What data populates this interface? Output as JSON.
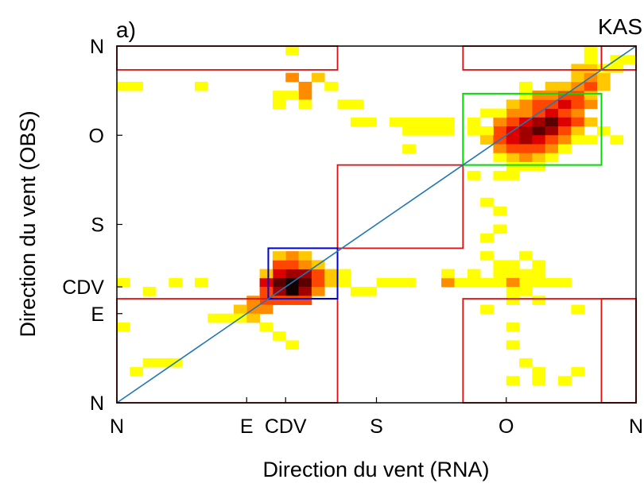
{
  "chart_data": {
    "type": "heatmap",
    "panel_label": "a)",
    "station": "KAS",
    "xlabel": "Direction du vent (RNA)",
    "ylabel": "Direction du vent (OBS)",
    "axis_range_deg": [
      0,
      360
    ],
    "x_ticks": [
      {
        "label": "N",
        "value": 0
      },
      {
        "label": "E",
        "value": 90
      },
      {
        "label": "CDV",
        "value": 117
      },
      {
        "label": "S",
        "value": 180
      },
      {
        "label": "O",
        "value": 270
      },
      {
        "label": "N",
        "value": 360
      }
    ],
    "y_ticks": [
      {
        "label": "N",
        "value": 0
      },
      {
        "label": "E",
        "value": 90
      },
      {
        "label": "CDV",
        "value": 117
      },
      {
        "label": "S",
        "value": 180
      },
      {
        "label": "O",
        "value": 270
      },
      {
        "label": "N",
        "value": 360
      }
    ],
    "bin_deg": 9,
    "colormap": [
      "#ffff00",
      "#ffc800",
      "#ff8c00",
      "#ff4600",
      "#dc0000",
      "#a00000",
      "#5a0000",
      "#140000"
    ],
    "colors": {
      "diagonal": "#1f77b4",
      "red_regions": "#e01010",
      "blue_box": "#0000cc",
      "green_box": "#00dd00"
    },
    "cells": [
      [
        117,
        117,
        1.0
      ],
      [
        117,
        108,
        0.9
      ],
      [
        108,
        117,
        0.85
      ],
      [
        126,
        117,
        0.8
      ],
      [
        117,
        126,
        0.75
      ],
      [
        108,
        108,
        0.7
      ],
      [
        126,
        108,
        0.65
      ],
      [
        126,
        126,
        0.65
      ],
      [
        108,
        126,
        0.6
      ],
      [
        99,
        117,
        0.55
      ],
      [
        117,
        99,
        0.5
      ],
      [
        99,
        108,
        0.5
      ],
      [
        135,
        117,
        0.5
      ],
      [
        117,
        135,
        0.5
      ],
      [
        108,
        99,
        0.45
      ],
      [
        99,
        99,
        0.45
      ],
      [
        135,
        126,
        0.45
      ],
      [
        126,
        99,
        0.4
      ],
      [
        108,
        135,
        0.4
      ],
      [
        126,
        135,
        0.35
      ],
      [
        90,
        99,
        0.35
      ],
      [
        99,
        90,
        0.35
      ],
      [
        90,
        90,
        0.3
      ],
      [
        81,
        90,
        0.25
      ],
      [
        117,
        144,
        0.3
      ],
      [
        135,
        108,
        0.3
      ],
      [
        108,
        144,
        0.2
      ],
      [
        126,
        144,
        0.25
      ],
      [
        99,
        126,
        0.15
      ],
      [
        144,
        126,
        0.15
      ],
      [
        144,
        117,
        0.15
      ],
      [
        135,
        135,
        0.2
      ],
      [
        72,
        81,
        0.1
      ],
      [
        81,
        81,
        0.1
      ],
      [
        63,
        81,
        0.05
      ],
      [
        108,
        63,
        0.05
      ],
      [
        117,
        54,
        0.05
      ],
      [
        99,
        72,
        0.1
      ],
      [
        90,
        81,
        0.15
      ],
      [
        9,
        27,
        0.05
      ],
      [
        36,
        117,
        0.05
      ],
      [
        0,
        72,
        0.05
      ],
      [
        18,
        108,
        0.05
      ],
      [
        54,
        117,
        0.05
      ],
      [
        18,
        36,
        0.05
      ],
      [
        27,
        36,
        0.05
      ],
      [
        36,
        36,
        0.05
      ],
      [
        0,
        117,
        0.05
      ],
      [
        153,
        117,
        0.05
      ],
      [
        162,
        108,
        0.05
      ],
      [
        171,
        108,
        0.05
      ],
      [
        153,
        126,
        0.05
      ],
      [
        180,
        117,
        0.05
      ],
      [
        189,
        117,
        0.05
      ],
      [
        198,
        117,
        0.05
      ],
      [
        225,
        117,
        0.3
      ],
      [
        225,
        126,
        0.05
      ],
      [
        234,
        117,
        0.05
      ],
      [
        243,
        117,
        0.05
      ],
      [
        243,
        126,
        0.05
      ],
      [
        252,
        117,
        0.05
      ],
      [
        261,
        117,
        0.05
      ],
      [
        270,
        126,
        0.05
      ],
      [
        279,
        117,
        0.05
      ],
      [
        288,
        117,
        0.05
      ],
      [
        297,
        117,
        0.05
      ],
      [
        306,
        117,
        0.05
      ],
      [
        261,
        126,
        0.1
      ],
      [
        270,
        117,
        0.3
      ],
      [
        279,
        126,
        0.1
      ],
      [
        279,
        108,
        0.05
      ],
      [
        288,
        126,
        0.05
      ],
      [
        288,
        135,
        0.05
      ],
      [
        270,
        135,
        0.05
      ],
      [
        270,
        108,
        0.05
      ],
      [
        270,
        99,
        0.05
      ],
      [
        270,
        72,
        0.05
      ],
      [
        252,
        144,
        0.05
      ],
      [
        279,
        144,
        0.05
      ],
      [
        261,
        135,
        0.05
      ],
      [
        261,
        171,
        0.05
      ],
      [
        252,
        162,
        0.05
      ],
      [
        252,
        90,
        0.05
      ],
      [
        288,
        99,
        0.05
      ],
      [
        270,
        54,
        0.05
      ],
      [
        288,
        27,
        0.05
      ],
      [
        288,
        18,
        0.05
      ],
      [
        306,
        18,
        0.05
      ],
      [
        270,
        18,
        0.05
      ],
      [
        315,
        27,
        0.05
      ],
      [
        315,
        90,
        0.05
      ],
      [
        279,
        36,
        0.05
      ],
      [
        126,
        315,
        0.35
      ],
      [
        117,
        324,
        0.3
      ],
      [
        126,
        306,
        0.35
      ],
      [
        135,
        324,
        0.15
      ],
      [
        117,
        306,
        0.05
      ],
      [
        126,
        297,
        0.05
      ],
      [
        108,
        306,
        0.05
      ],
      [
        108,
        297,
        0.05
      ],
      [
        144,
        315,
        0.05
      ],
      [
        153,
        297,
        0.05
      ],
      [
        162,
        297,
        0.05
      ],
      [
        162,
        279,
        0.05
      ],
      [
        171,
        279,
        0.05
      ],
      [
        189,
        279,
        0.05
      ],
      [
        198,
        279,
        0.05
      ],
      [
        207,
        279,
        0.05
      ],
      [
        207,
        270,
        0.05
      ],
      [
        198,
        270,
        0.05
      ],
      [
        216,
        279,
        0.05
      ],
      [
        225,
        279,
        0.05
      ],
      [
        198,
        252,
        0.05
      ],
      [
        216,
        270,
        0.05
      ],
      [
        225,
        270,
        0.05
      ],
      [
        243,
        279,
        0.05
      ],
      [
        252,
        288,
        0.05
      ],
      [
        243,
        270,
        0.05
      ],
      [
        0,
        315,
        0.05
      ],
      [
        9,
        315,
        0.05
      ],
      [
        54,
        315,
        0.05
      ],
      [
        117,
        351,
        0.05
      ],
      [
        261,
        189,
        0.05
      ],
      [
        252,
        198,
        0.05
      ],
      [
        243,
        225,
        0.05
      ],
      [
        261,
        225,
        0.05
      ],
      [
        270,
        225,
        0.05
      ],
      [
        279,
        297,
        0.05
      ],
      [
        279,
        306,
        0.05
      ],
      [
        288,
        306,
        0.2
      ],
      [
        297,
        306,
        0.2
      ],
      [
        297,
        315,
        0.2
      ],
      [
        306,
        315,
        0.05
      ],
      [
        279,
        279,
        0.05
      ],
      [
        270,
        288,
        0.3
      ],
      [
        279,
        288,
        0.35
      ],
      [
        288,
        288,
        0.45
      ],
      [
        297,
        288,
        0.55
      ],
      [
        306,
        288,
        0.5
      ],
      [
        315,
        288,
        0.3
      ],
      [
        270,
        279,
        0.45
      ],
      [
        279,
        279,
        0.55
      ],
      [
        288,
        279,
        0.7
      ],
      [
        297,
        279,
        0.8
      ],
      [
        306,
        279,
        0.6
      ],
      [
        315,
        279,
        0.4
      ],
      [
        324,
        279,
        0.2
      ],
      [
        261,
        279,
        0.3
      ],
      [
        261,
        270,
        0.4
      ],
      [
        270,
        270,
        0.6
      ],
      [
        279,
        270,
        0.7
      ],
      [
        288,
        270,
        0.85
      ],
      [
        297,
        270,
        0.75
      ],
      [
        306,
        270,
        0.5
      ],
      [
        315,
        270,
        0.25
      ],
      [
        252,
        270,
        0.1
      ],
      [
        252,
        261,
        0.2
      ],
      [
        261,
        261,
        0.5
      ],
      [
        270,
        261,
        0.6
      ],
      [
        279,
        261,
        0.7
      ],
      [
        288,
        261,
        0.6
      ],
      [
        297,
        261,
        0.45
      ],
      [
        306,
        261,
        0.3
      ],
      [
        315,
        261,
        0.1
      ],
      [
        261,
        252,
        0.3
      ],
      [
        270,
        252,
        0.4
      ],
      [
        279,
        252,
        0.5
      ],
      [
        288,
        252,
        0.45
      ],
      [
        297,
        252,
        0.3
      ],
      [
        306,
        252,
        0.1
      ],
      [
        270,
        243,
        0.25
      ],
      [
        279,
        243,
        0.3
      ],
      [
        288,
        243,
        0.2
      ],
      [
        261,
        243,
        0.1
      ],
      [
        297,
        243,
        0.1
      ],
      [
        279,
        234,
        0.05
      ],
      [
        270,
        234,
        0.05
      ],
      [
        288,
        234,
        0.05
      ],
      [
        279,
        297,
        0.35
      ],
      [
        288,
        297,
        0.4
      ],
      [
        297,
        297,
        0.5
      ],
      [
        306,
        297,
        0.55
      ],
      [
        315,
        297,
        0.45
      ],
      [
        324,
        297,
        0.3
      ],
      [
        270,
        297,
        0.15
      ],
      [
        288,
        306,
        0.3
      ],
      [
        297,
        306,
        0.35
      ],
      [
        306,
        306,
        0.4
      ],
      [
        315,
        306,
        0.4
      ],
      [
        324,
        306,
        0.25
      ],
      [
        306,
        315,
        0.25
      ],
      [
        315,
        315,
        0.35
      ],
      [
        324,
        315,
        0.4
      ],
      [
        333,
        315,
        0.2
      ],
      [
        315,
        324,
        0.2
      ],
      [
        324,
        324,
        0.3
      ],
      [
        333,
        324,
        0.25
      ],
      [
        315,
        333,
        0.15
      ],
      [
        324,
        333,
        0.15
      ],
      [
        333,
        333,
        0.1
      ],
      [
        324,
        342,
        0.1
      ],
      [
        324,
        351,
        0.05
      ],
      [
        342,
        333,
        0.05
      ],
      [
        342,
        342,
        0.05
      ],
      [
        351,
        342,
        0.05
      ],
      [
        333,
        270,
        0.05
      ],
      [
        342,
        261,
        0.05
      ],
      [
        324,
        261,
        0.05
      ],
      [
        261,
        288,
        0.1
      ],
      [
        279,
        315,
        0.05
      ]
    ],
    "red_regions": [
      {
        "x1": 0,
        "x2": 153,
        "y1": 0,
        "y2": 105
      },
      {
        "x1": 0,
        "x2": 153,
        "y1": 336,
        "y2": 360
      },
      {
        "x1": 240,
        "x2": 360,
        "y1": 0,
        "y2": 105
      },
      {
        "x1": 336,
        "x2": 360,
        "y1": 0,
        "y2": 105
      },
      {
        "x1": 240,
        "x2": 336,
        "y1": 336,
        "y2": 360
      },
      {
        "x1": 153,
        "x2": 240,
        "y1": 156,
        "y2": 240
      },
      {
        "x1": 336,
        "x2": 360,
        "y1": 336,
        "y2": 360
      }
    ],
    "blue_box": {
      "x1": 105,
      "x2": 153,
      "y1": 105,
      "y2": 156
    },
    "green_box": {
      "x1": 240,
      "x2": 336,
      "y1": 240,
      "y2": 312
    }
  }
}
